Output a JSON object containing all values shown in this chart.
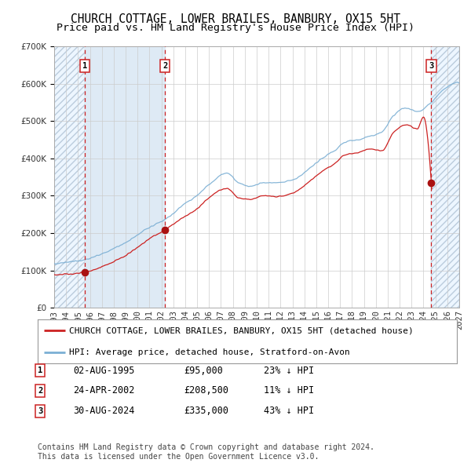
{
  "title": "CHURCH COTTAGE, LOWER BRAILES, BANBURY, OX15 5HT",
  "subtitle": "Price paid vs. HM Land Registry's House Price Index (HPI)",
  "x_start_year": 1993,
  "x_end_year": 2027,
  "y_min": 0,
  "y_max": 700000,
  "y_ticks": [
    0,
    100000,
    200000,
    300000,
    400000,
    500000,
    600000,
    700000
  ],
  "y_tick_labels": [
    "£0",
    "£100K",
    "£200K",
    "£300K",
    "£400K",
    "£500K",
    "£600K",
    "£700K"
  ],
  "hpi_color": "#7bafd4",
  "price_color": "#cc2222",
  "sale_marker_color": "#aa1111",
  "background_color": "#ffffff",
  "shade_color": "#deeaf5",
  "hatch_color": "#ddeeff",
  "grid_color": "#cccccc",
  "sale_points": [
    {
      "year": 1995.58,
      "price": 95000,
      "label": "1",
      "date": "02-AUG-1995",
      "pct": "23%"
    },
    {
      "year": 2002.31,
      "price": 208500,
      "label": "2",
      "date": "24-APR-2002",
      "pct": "11%"
    },
    {
      "year": 2024.66,
      "price": 335000,
      "label": "3",
      "date": "30-AUG-2024",
      "pct": "43%"
    }
  ],
  "legend_house_label": "CHURCH COTTAGE, LOWER BRAILES, BANBURY, OX15 5HT (detached house)",
  "legend_hpi_label": "HPI: Average price, detached house, Stratford-on-Avon",
  "footnote": "Contains HM Land Registry data © Crown copyright and database right 2024.\nThis data is licensed under the Open Government Licence v3.0.",
  "title_fontsize": 10.5,
  "subtitle_fontsize": 9.5,
  "tick_fontsize": 7.5,
  "legend_fontsize": 8,
  "table_fontsize": 8.5,
  "footnote_fontsize": 7
}
